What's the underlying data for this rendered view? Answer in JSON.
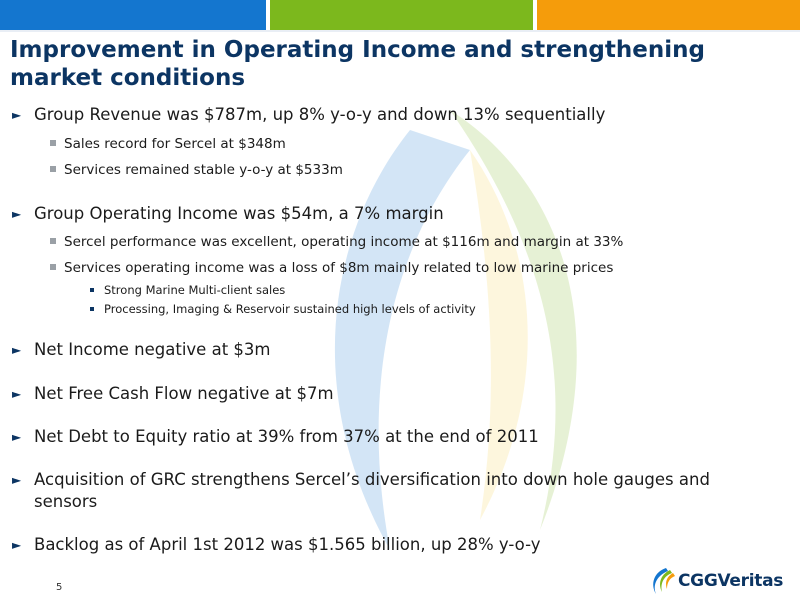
{
  "colors": {
    "top_blue": "#1476cf",
    "top_green": "#7cb81d",
    "top_orange": "#f59c0b",
    "title": "#0c3563"
  },
  "title": "Improvement in Operating Income and strengthening market conditions",
  "bullets": [
    {
      "text": "Group Revenue was $787m, up 8% y-o-y and down 13% sequentially"
    },
    {
      "text": "Sales record for Sercel at $348m"
    },
    {
      "text": "Services remained stable y-o-y at $533m"
    },
    {
      "text": "Group Operating Income was $54m, a 7% margin"
    },
    {
      "text": "Sercel performance was excellent, operating income at $116m and margin at 33%"
    },
    {
      "text": "Services operating income was a loss of $8m mainly related to low marine prices"
    },
    {
      "text": "Strong Marine Multi-client sales"
    },
    {
      "text": "Processing, Imaging & Reservoir sustained high levels of activity"
    },
    {
      "text": "Net Income negative at $3m"
    },
    {
      "text": "Net Free Cash Flow negative at $7m"
    },
    {
      "text": "Net Debt to Equity ratio at 39% from 37% at the end of 2011"
    },
    {
      "text": "Acquisition of GRC strengthens Sercel’s diversification into down hole gauges and sensors"
    },
    {
      "text": "Backlog as of April 1st 2012 was $1.565 billion, up 28% y-o-y"
    }
  ],
  "page_number": "5",
  "logo_text": "CGGVeritas",
  "icons": {
    "bullet_l1": "triangle-right-icon",
    "bullet_l2": "square-bullet-icon",
    "logo": "cggveritas-logo"
  }
}
